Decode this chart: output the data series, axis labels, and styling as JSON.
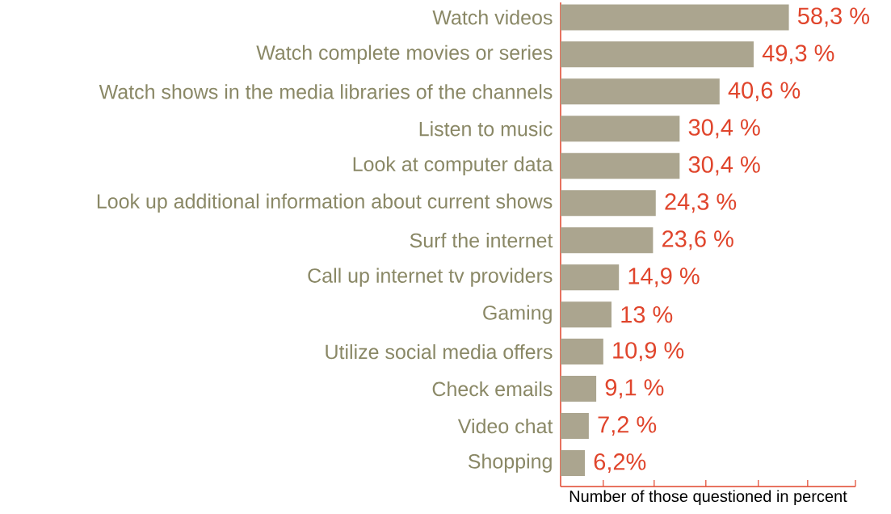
{
  "chart_data": {
    "type": "bar",
    "orientation": "horizontal",
    "xlabel": "Number of those questioned in percent",
    "categories": [
      "Watch videos",
      "Watch complete movies or series",
      "Watch shows in the media libraries of the channels",
      "Listen to music",
      "Look at computer data",
      "Look up additional information about current shows",
      "Surf the internet",
      "Call up internet tv providers",
      "Gaming",
      "Utilize social media offers",
      "Check emails",
      "Video chat",
      "Shopping"
    ],
    "values": [
      58.3,
      49.3,
      40.6,
      30.4,
      30.4,
      24.3,
      23.6,
      14.9,
      13,
      10.9,
      9.1,
      7.2,
      6.2
    ],
    "value_labels": [
      "58,3 %",
      "49,3 %",
      "40,6 %",
      "30,4 %",
      "30,4 %",
      "24,3 %",
      "23,6 %",
      "14,9 %",
      "13 %",
      "10,9 %",
      "9,1 %",
      "7,2 %",
      "6,2%"
    ],
    "color": "#aba58f",
    "xlim": [
      0,
      75.3
    ],
    "xticks": [
      {
        "value": 10.9,
        "label": null
      },
      {
        "value": 23.9,
        "label": null
      },
      {
        "value": 37.1,
        "label": null
      },
      {
        "value": 50.5,
        "label": null
      },
      {
        "value": 63.1,
        "label": null
      },
      {
        "value": 75.3,
        "label": null
      }
    ],
    "tick_labels": "y",
    "grid": false
  }
}
